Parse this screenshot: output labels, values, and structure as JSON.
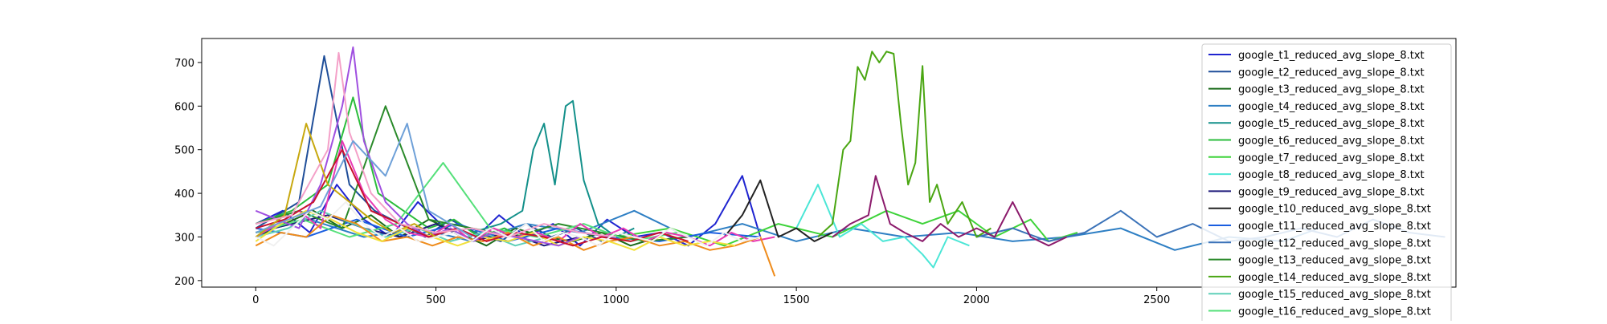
{
  "chart_data": {
    "type": "line",
    "title": "",
    "xlabel": "",
    "ylabel": "",
    "xlim": [
      -150,
      3330
    ],
    "ylim": [
      185,
      755
    ],
    "x_ticks": [
      0,
      500,
      1000,
      1500,
      2000,
      2500
    ],
    "x_tick_labels": [
      "0",
      "500",
      "1000",
      "1500",
      "2000",
      "2500"
    ],
    "y_ticks": [
      200,
      300,
      400,
      500,
      600,
      700
    ],
    "y_tick_labels": [
      "200",
      "300",
      "400",
      "500",
      "600",
      "700"
    ],
    "grid": false,
    "legend_placement": "top-right",
    "series": [
      {
        "name": "google_t1_reduced_avg_slope_8.txt",
        "color": "#1f24d0",
        "x": [
          0,
          75,
          150,
          225,
          300,
          375,
          450,
          525,
          600,
          675,
          750,
          825,
          900,
          975,
          1050,
          1125,
          1200,
          1275,
          1350,
          1400
        ],
        "y": [
          330,
          360,
          310,
          420,
          340,
          300,
          380,
          320,
          290,
          350,
          300,
          330,
          280,
          340,
          300,
          310,
          280,
          330,
          440,
          300
        ]
      },
      {
        "name": "google_t2_reduced_avg_slope_8.txt",
        "color": "#1f4e99",
        "x": [
          0,
          60,
          120,
          190,
          260,
          330,
          400,
          470,
          540,
          610,
          680,
          750,
          820,
          890,
          960
        ],
        "y": [
          320,
          350,
          380,
          715,
          420,
          360,
          330,
          300,
          340,
          310,
          290,
          330,
          300,
          320,
          290
        ]
      },
      {
        "name": "google_t3_reduced_avg_slope_8.txt",
        "color": "#1b6b1b",
        "x": [
          0,
          80,
          160,
          240,
          320,
          400,
          480,
          560,
          640,
          720,
          800,
          880,
          960,
          1040,
          1120
        ],
        "y": [
          300,
          330,
          360,
          320,
          350,
          300,
          340,
          310,
          280,
          320,
          300,
          290,
          310,
          280,
          300
        ]
      },
      {
        "name": "google_t4_reduced_avg_slope_8.txt",
        "color": "#2e7fc4",
        "x": [
          0,
          150,
          300,
          450,
          600,
          750,
          900,
          1050,
          1200,
          1350,
          1500,
          1650,
          1800,
          1950,
          2100,
          2250,
          2400,
          2550,
          2700,
          2850,
          2950
        ],
        "y": [
          310,
          340,
          300,
          320,
          290,
          330,
          310,
          360,
          300,
          330,
          290,
          320,
          300,
          310,
          290,
          300,
          320,
          270,
          300,
          290,
          320
        ]
      },
      {
        "name": "google_t5_reduced_avg_slope_8.txt",
        "color": "#13908a",
        "x": [
          600,
          680,
          740,
          770,
          800,
          830,
          860,
          880,
          910,
          950,
          1000,
          1050
        ],
        "y": [
          310,
          330,
          360,
          500,
          560,
          420,
          600,
          612,
          430,
          330,
          300,
          320
        ]
      },
      {
        "name": "google_t6_reduced_avg_slope_8.txt",
        "color": "#2bbd3c",
        "x": [
          0,
          100,
          200,
          270,
          340,
          410,
          480,
          550,
          620,
          690,
          760
        ],
        "y": [
          330,
          360,
          420,
          620,
          400,
          360,
          320,
          340,
          300,
          320,
          290
        ]
      },
      {
        "name": "google_t7_reduced_avg_slope_8.txt",
        "color": "#3ed33a",
        "x": [
          1000,
          1150,
          1300,
          1450,
          1600,
          1750,
          1850,
          1950,
          2050,
          2150,
          2200,
          2280
        ],
        "y": [
          300,
          320,
          280,
          330,
          300,
          360,
          330,
          360,
          300,
          340,
          290,
          310
        ]
      },
      {
        "name": "google_t8_reduced_avg_slope_8.txt",
        "color": "#4be6d6",
        "x": [
          1500,
          1560,
          1620,
          1680,
          1740,
          1800,
          1850,
          1880,
          1920,
          1980
        ],
        "y": [
          320,
          420,
          300,
          330,
          290,
          300,
          260,
          230,
          300,
          280
        ]
      },
      {
        "name": "google_t9_reduced_avg_slope_8.txt",
        "color": "#1e1a7a",
        "x": [
          0,
          100,
          200,
          300,
          400,
          500,
          600,
          700,
          800,
          900
        ],
        "y": [
          310,
          330,
          350,
          320,
          300,
          330,
          290,
          310,
          280,
          300
        ]
      },
      {
        "name": "google_t10_reduced_avg_slope_8.txt",
        "color": "#222222",
        "x": [
          1300,
          1350,
          1400,
          1450,
          1500,
          1550,
          1600
        ],
        "y": [
          300,
          350,
          430,
          300,
          320,
          290,
          310
        ]
      },
      {
        "name": "google_t11_reduced_avg_slope_8.txt",
        "color": "#1a5ee0",
        "x": [
          0,
          140,
          280,
          420,
          560,
          700,
          840,
          980,
          1120,
          1260,
          1400
        ],
        "y": [
          320,
          300,
          340,
          300,
          330,
          290,
          320,
          300,
          290,
          310,
          300
        ]
      },
      {
        "name": "google_t12_reduced_avg_slope_8.txt",
        "color": "#3a72b8",
        "x": [
          2000,
          2100,
          2200,
          2300,
          2400,
          2500,
          2600,
          2700,
          2800,
          2900,
          3000,
          3100,
          3200,
          3300
        ],
        "y": [
          300,
          320,
          290,
          310,
          360,
          300,
          330,
          290,
          300,
          320,
          300,
          340,
          310,
          300
        ]
      },
      {
        "name": "google_t13_reduced_avg_slope_8.txt",
        "color": "#2a8a2a",
        "x": [
          0,
          120,
          240,
          360,
          480,
          600,
          720,
          840,
          960,
          1080,
          1200
        ],
        "y": [
          330,
          360,
          320,
          600,
          340,
          320,
          300,
          330,
          310,
          290,
          300
        ]
      },
      {
        "name": "google_t14_reduced_avg_slope_8.txt",
        "color": "#4aa612",
        "x": [
          1560,
          1600,
          1630,
          1650,
          1670,
          1690,
          1710,
          1730,
          1750,
          1770,
          1790,
          1810,
          1830,
          1850,
          1870,
          1890,
          1920,
          1960,
          2000,
          2040
        ],
        "y": [
          300,
          330,
          500,
          520,
          690,
          660,
          725,
          700,
          725,
          720,
          560,
          420,
          470,
          692,
          380,
          420,
          330,
          380,
          300,
          320
        ]
      },
      {
        "name": "google_t15_reduced_avg_slope_8.txt",
        "color": "#5fd0b8",
        "x": [
          0,
          90,
          180,
          270,
          360,
          450,
          540,
          630,
          720,
          810
        ],
        "y": [
          300,
          320,
          360,
          330,
          300,
          320,
          290,
          310,
          280,
          300
        ]
      },
      {
        "name": "google_t16_reduced_avg_slope_8.txt",
        "color": "#55e07a",
        "x": [
          0,
          130,
          260,
          390,
          520,
          650,
          780,
          910,
          1040,
          1170
        ],
        "y": [
          310,
          340,
          300,
          330,
          470,
          320,
          300,
          330,
          290,
          310
        ]
      },
      {
        "name": "",
        "color": "#e83ab4",
        "x": [
          0,
          60,
          120,
          180,
          240,
          300,
          360,
          420,
          480,
          540,
          600,
          660,
          720,
          780,
          840,
          900,
          960,
          1020,
          1080,
          1140,
          1200,
          1260,
          1320,
          1380,
          1440
        ],
        "y": [
          300,
          330,
          360,
          320,
          520,
          400,
          340,
          310,
          300,
          330,
          290,
          320,
          300,
          310,
          290,
          330,
          300,
          320,
          290,
          310,
          300,
          280,
          310,
          290,
          300
        ]
      },
      {
        "name": "",
        "color": "#ef8c1c",
        "x": [
          0,
          70,
          140,
          210,
          280,
          350,
          420,
          490,
          560,
          630,
          700,
          770,
          840,
          910,
          980,
          1050,
          1120,
          1190,
          1260,
          1330,
          1400,
          1440
        ],
        "y": [
          280,
          310,
          300,
          350,
          330,
          290,
          300,
          280,
          300,
          290,
          310,
          280,
          300,
          270,
          290,
          300,
          280,
          290,
          270,
          280,
          300,
          210
        ]
      },
      {
        "name": "",
        "color": "#f2e13a",
        "x": [
          0,
          70,
          140,
          210,
          280,
          350,
          420,
          490,
          560,
          630,
          700,
          770,
          840,
          910,
          980,
          1050,
          1120,
          1190,
          1260,
          1330
        ],
        "y": [
          290,
          330,
          360,
          340,
          310,
          290,
          320,
          300,
          280,
          300,
          290,
          310,
          280,
          300,
          290,
          270,
          300,
          280,
          290,
          280
        ]
      },
      {
        "name": "",
        "color": "#a050e0",
        "x": [
          0,
          60,
          120,
          180,
          240,
          270,
          300,
          360,
          420,
          480,
          540,
          600,
          660,
          720,
          780,
          840,
          900
        ],
        "y": [
          360,
          340,
          320,
          420,
          600,
          735,
          520,
          380,
          330,
          300,
          320,
          290,
          310,
          300,
          290,
          280,
          300
        ]
      },
      {
        "name": "",
        "color": "#c8102e",
        "x": [
          0,
          80,
          160,
          240,
          320,
          400,
          480,
          560,
          640,
          720,
          800,
          880,
          960,
          1040,
          1120,
          1200
        ],
        "y": [
          320,
          340,
          380,
          500,
          360,
          330,
          300,
          320,
          290,
          310,
          300,
          280,
          300,
          290,
          310,
          290
        ]
      },
      {
        "name": "",
        "color": "#c7a80f",
        "x": [
          0,
          80,
          140,
          200,
          260,
          320,
          380,
          440,
          500
        ],
        "y": [
          300,
          350,
          560,
          420,
          380,
          340,
          310,
          330,
          300
        ]
      },
      {
        "name": "",
        "color": "#f4a0c8",
        "x": [
          0,
          100,
          200,
          230,
          260,
          320,
          400,
          500,
          600,
          700,
          800,
          900,
          1000
        ],
        "y": [
          330,
          350,
          500,
          722,
          540,
          400,
          330,
          310,
          320,
          300,
          330,
          310,
          300
        ]
      },
      {
        "name": "",
        "color": "#8b1a6b",
        "x": [
          1600,
          1650,
          1700,
          1720,
          1760,
          1800,
          1850,
          1900,
          1950,
          2000,
          2050,
          2100,
          2150,
          2200,
          2250
        ],
        "y": [
          300,
          330,
          350,
          440,
          330,
          310,
          290,
          330,
          300,
          320,
          300,
          380,
          300,
          280,
          300
        ]
      },
      {
        "name": "",
        "color": "#f0f0f0",
        "x": [
          0,
          50,
          100,
          150,
          200,
          250,
          300,
          350,
          400,
          450,
          500,
          550,
          600,
          650,
          700,
          750,
          800,
          850,
          900,
          950,
          1000,
          1050,
          1100,
          1150,
          1200,
          1250,
          1300,
          1350,
          1400
        ],
        "y": [
          300,
          280,
          320,
          360,
          340,
          380,
          330,
          300,
          320,
          290,
          300,
          310,
          290,
          320,
          300,
          330,
          290,
          310,
          300,
          280,
          310,
          300,
          290,
          320,
          300,
          280,
          310,
          290,
          300
        ]
      },
      {
        "name": "",
        "color": "#6ea0d8",
        "x": [
          0,
          90,
          180,
          270,
          360,
          420,
          480,
          540,
          600
        ],
        "y": [
          310,
          340,
          370,
          520,
          440,
          560,
          360,
          330,
          300
        ]
      }
    ]
  }
}
